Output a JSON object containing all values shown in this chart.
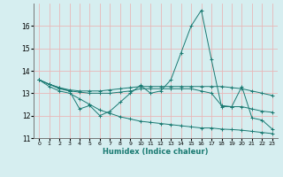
{
  "background_color": "#d6eef0",
  "grid_color": "#f0c8c8",
  "line_color": "#1a7a72",
  "xlabel": "Humidex (Indice chaleur)",
  "xlim": [
    -0.5,
    23.5
  ],
  "ylim": [
    11,
    17
  ],
  "yticks": [
    11,
    12,
    13,
    14,
    15,
    16
  ],
  "xtick_labels": [
    "0",
    "1",
    "2",
    "3",
    "4",
    "5",
    "6",
    "7",
    "8",
    "9",
    "10",
    "11",
    "12",
    "13",
    "14",
    "15",
    "16",
    "17",
    "18",
    "19",
    "20",
    "21",
    "22",
    "23"
  ],
  "series": [
    {
      "x": [
        0,
        1,
        2,
        3,
        4,
        5,
        6,
        7,
        8,
        9,
        10,
        11,
        12,
        13,
        14,
        15,
        16,
        17,
        18,
        19,
        20,
        21,
        22,
        23
      ],
      "y": [
        13.6,
        13.4,
        13.2,
        13.1,
        12.3,
        12.45,
        12.0,
        12.2,
        12.6,
        13.0,
        13.35,
        13.0,
        13.1,
        13.6,
        14.8,
        16.0,
        16.7,
        14.5,
        12.4,
        12.4,
        13.3,
        11.9,
        11.8,
        11.4
      ]
    },
    {
      "x": [
        0,
        1,
        2,
        3,
        4,
        5,
        6,
        7,
        8,
        9,
        10,
        11,
        12,
        13,
        14,
        15,
        16,
        17,
        18,
        19,
        20,
        21,
        22,
        23
      ],
      "y": [
        13.6,
        13.4,
        13.25,
        13.15,
        13.1,
        13.1,
        13.1,
        13.15,
        13.2,
        13.25,
        13.3,
        13.3,
        13.3,
        13.3,
        13.3,
        13.3,
        13.3,
        13.3,
        13.3,
        13.25,
        13.2,
        13.1,
        13.0,
        12.9
      ]
    },
    {
      "x": [
        0,
        1,
        2,
        3,
        4,
        5,
        6,
        7,
        8,
        9,
        10,
        11,
        12,
        13,
        14,
        15,
        16,
        17,
        18,
        19,
        20,
        21,
        22,
        23
      ],
      "y": [
        13.6,
        13.4,
        13.25,
        13.1,
        13.05,
        13.0,
        13.0,
        13.0,
        13.05,
        13.1,
        13.2,
        13.2,
        13.2,
        13.2,
        13.2,
        13.2,
        13.1,
        13.0,
        12.45,
        12.4,
        12.4,
        12.3,
        12.2,
        12.15
      ]
    },
    {
      "x": [
        0,
        1,
        2,
        3,
        4,
        5,
        6,
        7,
        8,
        9,
        10,
        11,
        12,
        13,
        14,
        15,
        16,
        17,
        18,
        19,
        20,
        21,
        22,
        23
      ],
      "y": [
        13.6,
        13.3,
        13.1,
        13.0,
        12.75,
        12.5,
        12.25,
        12.1,
        11.95,
        11.85,
        11.75,
        11.7,
        11.65,
        11.6,
        11.55,
        11.5,
        11.45,
        11.45,
        11.4,
        11.38,
        11.35,
        11.3,
        11.25,
        11.2
      ]
    }
  ]
}
